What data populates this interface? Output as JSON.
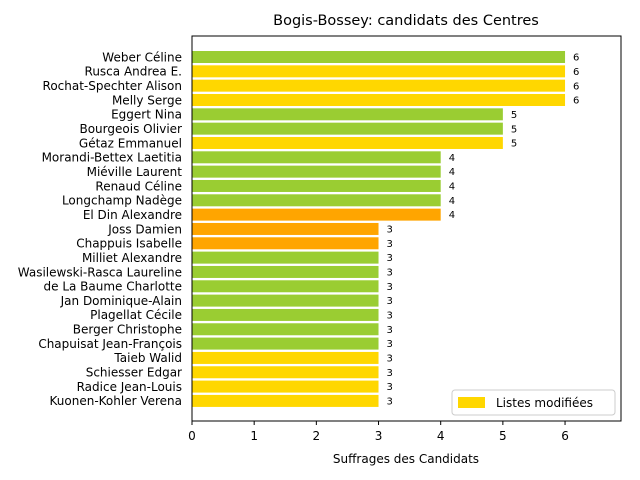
{
  "chart_data": {
    "type": "bar",
    "orientation": "horizontal",
    "title": "Bogis-Bossey: candidats des Centres",
    "xlabel": "Suffrages des Candidats",
    "ylabel": "",
    "xlim": [
      0,
      6.9
    ],
    "xticks": [
      0,
      1,
      2,
      3,
      4,
      5,
      6
    ],
    "grid": false,
    "colors": {
      "green": "#9acd32",
      "yellow": "#ffd700",
      "orange": "#ffa500"
    },
    "categories": [
      "Weber Céline",
      "Rusca Andrea E.",
      "Rochat-Spechter Alison",
      "Melly Serge",
      "Eggert Nina",
      "Bourgeois Olivier",
      "Gétaz Emmanuel",
      "Morandi-Bettex Laetitia",
      "Miéville Laurent",
      "Renaud Céline",
      "Longchamp Nadège",
      "El Din Alexandre",
      "Joss Damien",
      "Chappuis Isabelle",
      "Milliet Alexandre",
      "Wasilewski-Rasca Laureline",
      "de La Baume Charlotte",
      "Jan Dominique-Alain",
      "Plagellat Cécile",
      "Berger Christophe",
      "Chapuisat Jean-François",
      "Taieb Walid",
      "Schiesser Edgar",
      "Radice Jean-Louis",
      "Kuonen-Kohler Verena"
    ],
    "values": [
      6,
      6,
      6,
      6,
      5,
      5,
      5,
      4,
      4,
      4,
      4,
      4,
      3,
      3,
      3,
      3,
      3,
      3,
      3,
      3,
      3,
      3,
      3,
      3,
      3
    ],
    "bar_colors": [
      "green",
      "yellow",
      "yellow",
      "yellow",
      "green",
      "green",
      "yellow",
      "green",
      "green",
      "green",
      "green",
      "orange",
      "orange",
      "orange",
      "green",
      "green",
      "green",
      "green",
      "green",
      "green",
      "green",
      "yellow",
      "yellow",
      "yellow",
      "yellow"
    ],
    "legend": {
      "position": "lower-right",
      "entries": [
        {
          "label": "Listes modifiées",
          "color": "yellow"
        }
      ]
    }
  }
}
